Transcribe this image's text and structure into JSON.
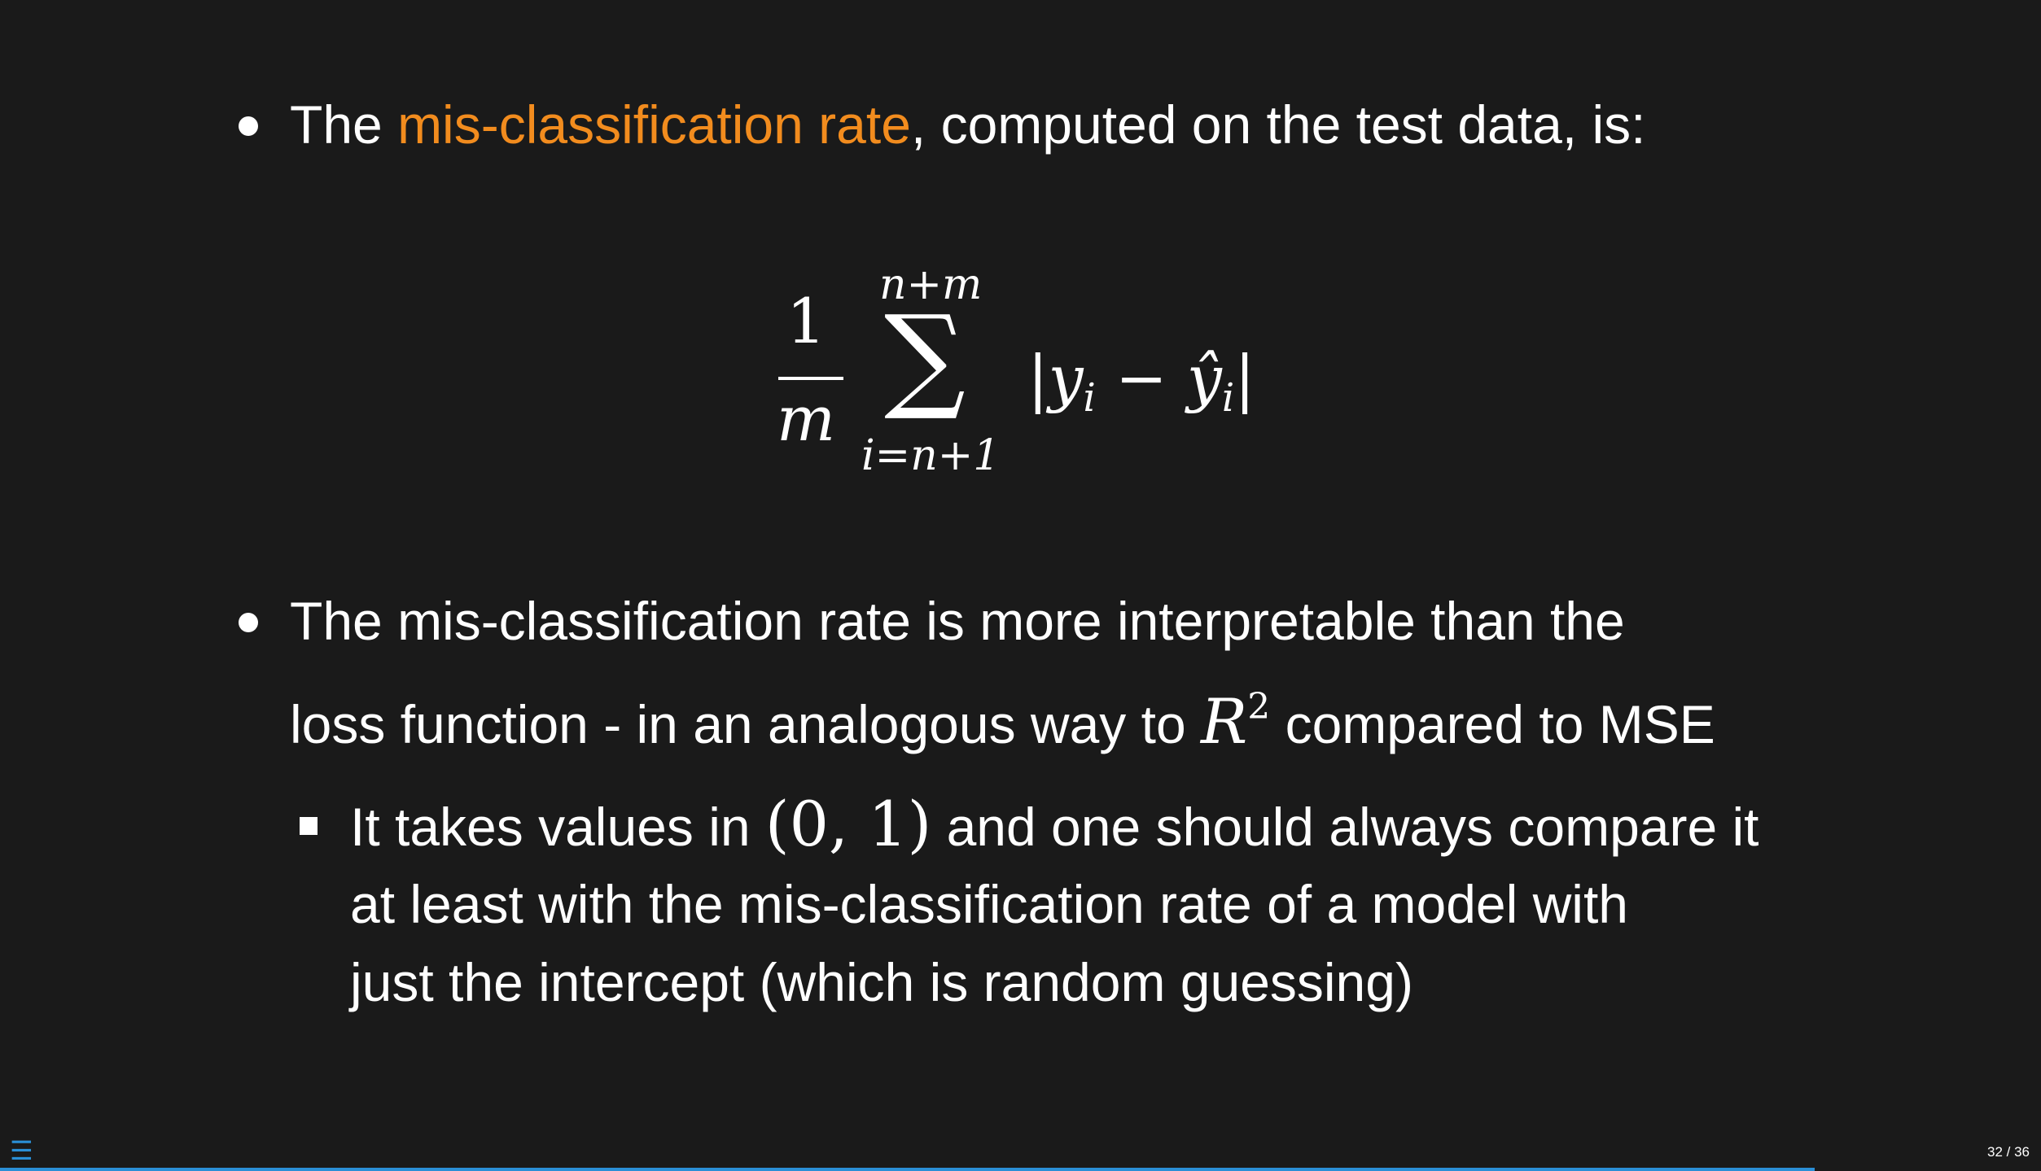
{
  "bullet1": {
    "before": "The ",
    "highlight": "mis-classification rate",
    "after": ", computed on the test data, is:"
  },
  "formula": {
    "numerator": "1",
    "denominator": "m",
    "sum_upper": "n+m",
    "sum_symbol": "∑",
    "sum_lower": "i=n+1",
    "summand_open": "|",
    "y": "y",
    "sub_i": "i",
    "minus": " − ",
    "y_hat": "ŷ",
    "sub_i2": "i",
    "summand_close": "|"
  },
  "bullet2": {
    "line1": "The mis-classification rate is more interpretable than the",
    "line2_before": "loss function - in an analogous way to ",
    "r_symbol": "R",
    "r_exp": "2",
    "line2_after": " compared to MSE"
  },
  "sub_bullet": {
    "line1_before": "It takes values in ",
    "interval": "(0, 1)",
    "line1_after": " and one should always compare it",
    "line2": "at least with the mis-classification rate of a model with",
    "line3": "just the intercept (which is random guessing)"
  },
  "footer": {
    "menu_glyph": "☰",
    "page_indicator": "32 / 36",
    "progress_fraction": 0.889,
    "accent_color": "#2a8fd6"
  },
  "colors": {
    "background": "#1a1a1a",
    "text": "#ffffff",
    "highlight": "#f28c1e"
  }
}
